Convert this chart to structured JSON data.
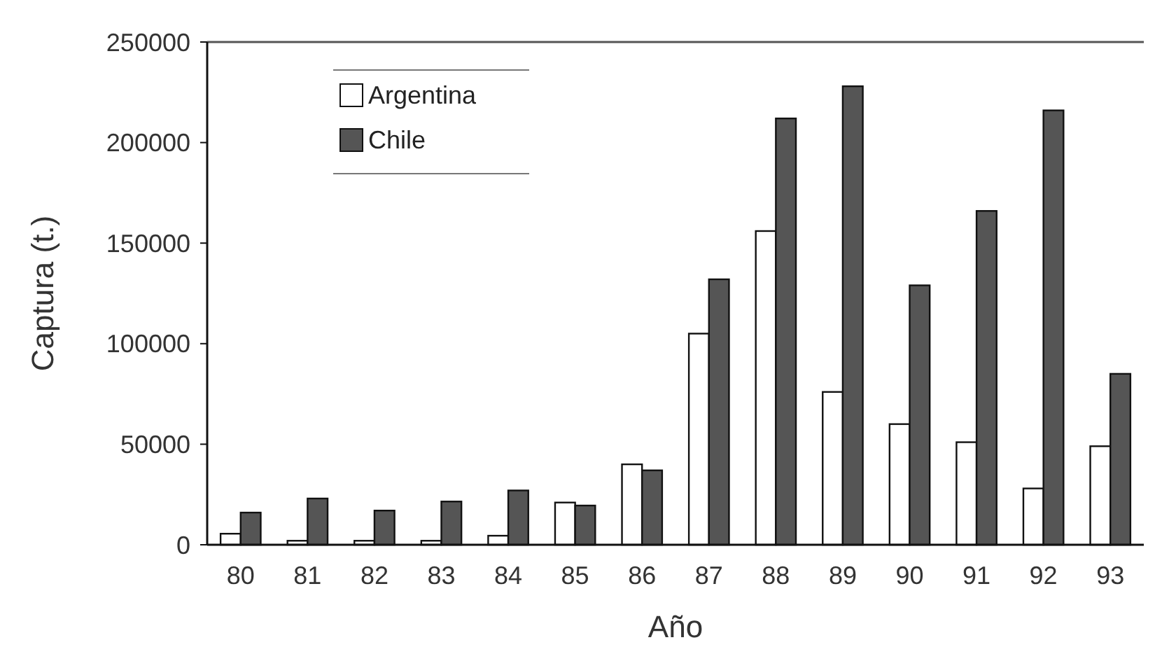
{
  "chart_data": {
    "type": "bar",
    "xlabel": "Año",
    "ylabel": "Captura (t.)",
    "categories": [
      "80",
      "81",
      "82",
      "83",
      "84",
      "85",
      "86",
      "87",
      "88",
      "89",
      "90",
      "91",
      "92",
      "93"
    ],
    "series": [
      {
        "name": "Argentina",
        "color": "#ffffff",
        "values": [
          5500,
          2000,
          2000,
          2000,
          4500,
          21000,
          40000,
          105000,
          156000,
          76000,
          60000,
          51000,
          28000,
          49000
        ]
      },
      {
        "name": "Chile",
        "color": "#555555",
        "values": [
          16000,
          23000,
          17000,
          21500,
          27000,
          19500,
          37000,
          132000,
          212000,
          228000,
          129000,
          166000,
          216000,
          85000
        ]
      }
    ],
    "ylim": [
      0,
      250000
    ],
    "yticks": [
      0,
      50000,
      100000,
      150000,
      200000,
      250000
    ],
    "grid": false,
    "legend": "top left"
  }
}
